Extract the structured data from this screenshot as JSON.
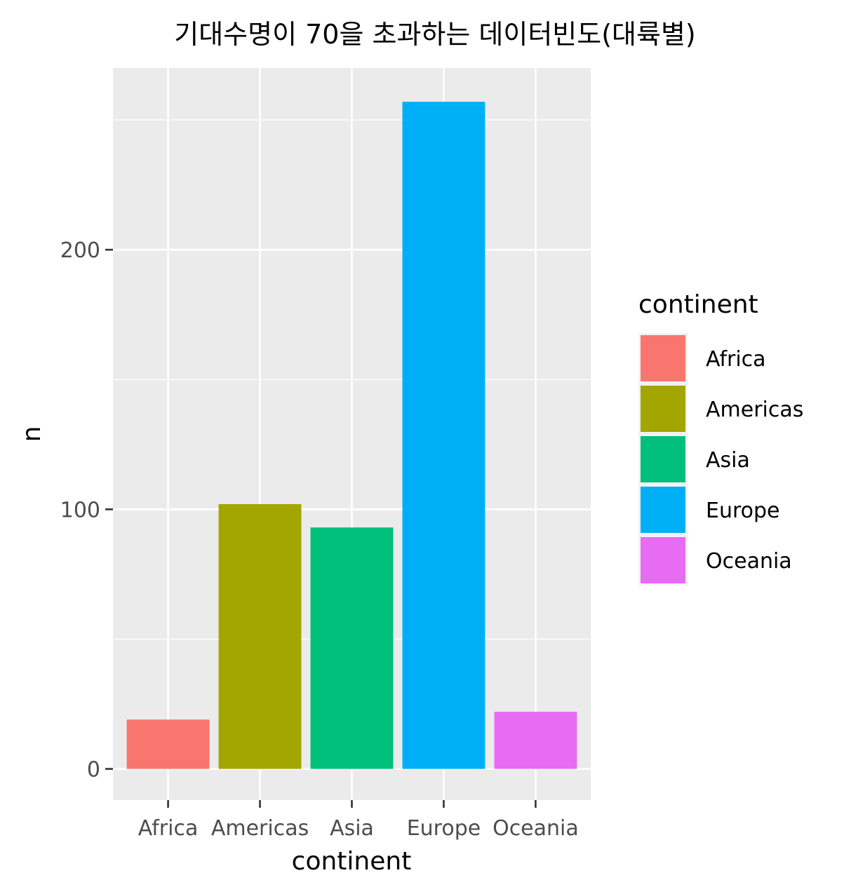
{
  "chart_data": {
    "type": "bar",
    "title": "기대수명이 70을 초과하는 데이터빈도(대륙별)",
    "xlabel": "continent",
    "ylabel": "n",
    "categories": [
      "Africa",
      "Americas",
      "Asia",
      "Europe",
      "Oceania"
    ],
    "values": [
      19,
      102,
      93,
      257,
      22
    ],
    "colors": [
      "#F8766D",
      "#A3A500",
      "#00BF7D",
      "#00B0F6",
      "#E76BF3"
    ],
    "yticks": [
      0,
      100,
      200
    ],
    "ylim": [
      -12,
      270
    ],
    "grid": true,
    "background": "#EBEBEB",
    "legend": {
      "title": "continent",
      "placement": "right",
      "items": [
        "Africa",
        "Americas",
        "Asia",
        "Europe",
        "Oceania"
      ]
    }
  }
}
